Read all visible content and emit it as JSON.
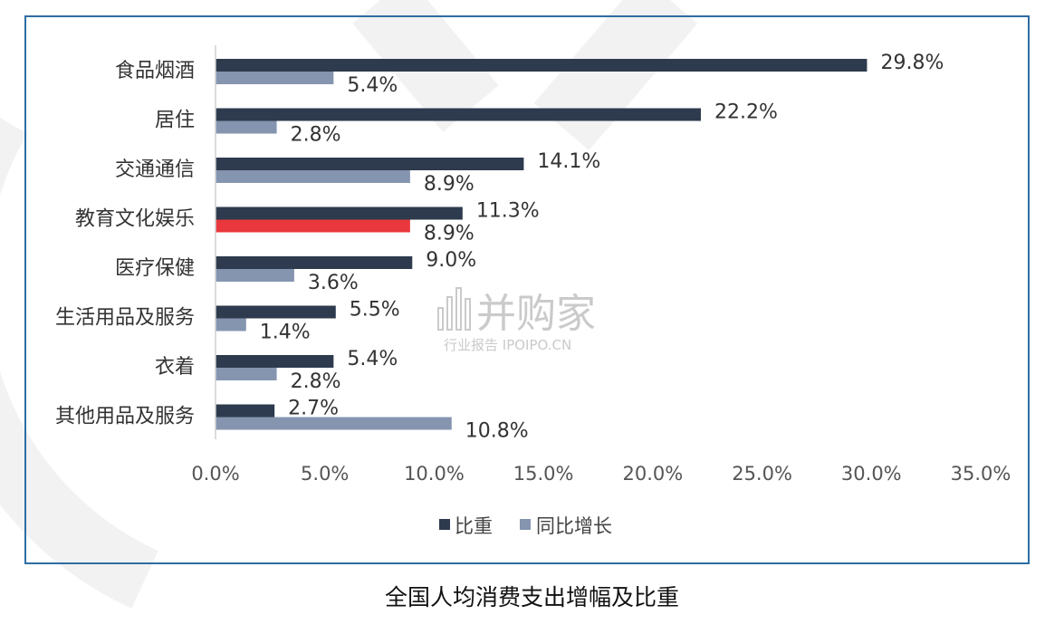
{
  "caption": "全国人均消费支出增幅及比重",
  "watermark": {
    "brand": "并购家",
    "sub": "行业报告 IPOIPO.CN"
  },
  "chart_data": {
    "type": "bar",
    "orientation": "horizontal",
    "categories": [
      "食品烟酒",
      "居住",
      "交通通信",
      "教育文化娱乐",
      "医疗保健",
      "生活用品及服务",
      "衣着",
      "其他用品及服务"
    ],
    "series": [
      {
        "name": "比重",
        "color": "#2e3a4d",
        "values": [
          29.8,
          22.2,
          14.1,
          11.3,
          9.0,
          5.5,
          5.4,
          2.7
        ],
        "labels": [
          "29.8%",
          "22.2%",
          "14.1%",
          "11.3%",
          "9.0%",
          "5.5%",
          "5.4%",
          "2.7%"
        ]
      },
      {
        "name": "同比增长",
        "color": "#8595b0",
        "highlight_color": "#e8383d",
        "highlight_index": 3,
        "values": [
          5.4,
          2.8,
          8.9,
          8.9,
          3.6,
          1.4,
          2.8,
          10.8
        ],
        "labels": [
          "5.4%",
          "2.8%",
          "8.9%",
          "8.9%",
          "3.6%",
          "1.4%",
          "2.8%",
          "10.8%"
        ]
      }
    ],
    "xlim": [
      0,
      35
    ],
    "xticks": [
      "0.0%",
      "5.0%",
      "10.0%",
      "15.0%",
      "20.0%",
      "25.0%",
      "30.0%",
      "35.0%"
    ],
    "legend_position": "bottom-center",
    "grid": false
  }
}
